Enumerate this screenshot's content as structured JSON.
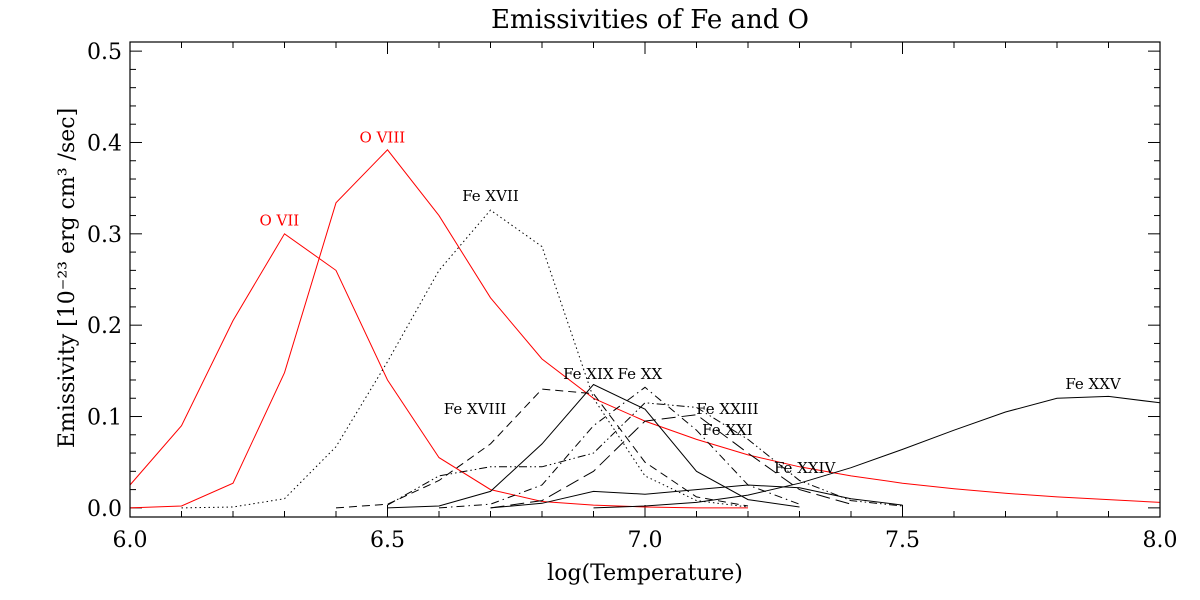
{
  "chart_data": {
    "type": "line",
    "title": "Emissivities of Fe and O",
    "xlabel": "log(Temperature)",
    "ylabel": "Emissivity [10⁻²³ erg cm³ /sec]",
    "xlim": [
      6.0,
      8.0
    ],
    "ylim": [
      -0.01,
      0.51
    ],
    "x_ticks": [
      "6.0",
      "6.5",
      "7.0",
      "7.5",
      "8.0"
    ],
    "y_ticks": [
      "0.0",
      "0.1",
      "0.2",
      "0.3",
      "0.4",
      "0.5"
    ],
    "grid": false,
    "legend": "none",
    "series": [
      {
        "name": "O  VII",
        "color": "#ff0000",
        "dash": "solid",
        "x": [
          6.0,
          6.1,
          6.2,
          6.3,
          6.4,
          6.5,
          6.6,
          6.7,
          6.8,
          6.9,
          7.0,
          7.1,
          7.2
        ],
        "y": [
          0.025,
          0.09,
          0.205,
          0.3,
          0.26,
          0.14,
          0.055,
          0.02,
          0.007,
          0.003,
          0.001,
          0.0,
          0.0
        ]
      },
      {
        "name": "O  VIII",
        "color": "#ff0000",
        "dash": "solid",
        "x": [
          6.0,
          6.1,
          6.2,
          6.3,
          6.4,
          6.5,
          6.6,
          6.7,
          6.8,
          6.9,
          7.0,
          7.1,
          7.2,
          7.3,
          7.4,
          7.5,
          7.6,
          7.7,
          7.8,
          7.9,
          8.0
        ],
        "y": [
          0.0,
          0.002,
          0.027,
          0.148,
          0.334,
          0.392,
          0.32,
          0.23,
          0.163,
          0.12,
          0.095,
          0.075,
          0.058,
          0.045,
          0.035,
          0.027,
          0.021,
          0.016,
          0.012,
          0.009,
          0.006
        ]
      },
      {
        "name": "Fe XVII",
        "color": "#000000",
        "dash": "dotted",
        "x": [
          6.1,
          6.2,
          6.3,
          6.4,
          6.5,
          6.6,
          6.7,
          6.8,
          6.9,
          7.0,
          7.1,
          7.2
        ],
        "y": [
          0.0,
          0.001,
          0.01,
          0.067,
          0.16,
          0.26,
          0.326,
          0.286,
          0.12,
          0.035,
          0.008,
          0.001
        ]
      },
      {
        "name": "Fe XVIII",
        "color": "#000000",
        "dash": "dashed",
        "x": [
          6.4,
          6.5,
          6.6,
          6.7,
          6.8,
          6.9,
          7.0,
          7.1,
          7.2
        ],
        "y": [
          0.0,
          0.004,
          0.03,
          0.07,
          0.13,
          0.125,
          0.05,
          0.012,
          0.002
        ]
      },
      {
        "name": "Fe XIX",
        "color": "#000000",
        "dash": "solid",
        "x": [
          6.5,
          6.6,
          6.7,
          6.8,
          6.9,
          7.0,
          7.1,
          7.2,
          7.3
        ],
        "y": [
          0.0,
          0.002,
          0.018,
          0.07,
          0.135,
          0.108,
          0.04,
          0.009,
          0.001
        ]
      },
      {
        "name": "Fe XX",
        "color": "#000000",
        "dash": "dashdot",
        "x": [
          6.6,
          6.7,
          6.8,
          6.9,
          7.0,
          7.1,
          7.2,
          7.3
        ],
        "y": [
          0.0,
          0.004,
          0.025,
          0.09,
          0.132,
          0.085,
          0.025,
          0.004
        ]
      },
      {
        "name": "Fe XXI",
        "color": "#000000",
        "dash": "longdash",
        "x": [
          6.7,
          6.8,
          6.9,
          7.0,
          7.1,
          7.2,
          7.3,
          7.4
        ],
        "y": [
          0.0,
          0.008,
          0.04,
          0.095,
          0.102,
          0.06,
          0.02,
          0.004
        ]
      },
      {
        "name": "Fe XXIII",
        "color": "#000000",
        "dash": "dashdotdot",
        "x": [
          6.5,
          6.6,
          6.7,
          6.8,
          6.9,
          7.0,
          7.1,
          7.2,
          7.3,
          7.4,
          7.5
        ],
        "y": [
          0.003,
          0.035,
          0.045,
          0.045,
          0.06,
          0.115,
          0.11,
          0.075,
          0.03,
          0.008,
          0.002
        ]
      },
      {
        "name": "Fe XXIV",
        "color": "#000000",
        "dash": "solid",
        "x": [
          6.7,
          6.8,
          6.9,
          7.0,
          7.1,
          7.2,
          7.3,
          7.4,
          7.5
        ],
        "y": [
          0.0,
          0.005,
          0.018,
          0.015,
          0.02,
          0.025,
          0.022,
          0.01,
          0.003
        ]
      },
      {
        "name": "Fe XXV",
        "color": "#000000",
        "dash": "solid",
        "x": [
          6.9,
          7.0,
          7.1,
          7.2,
          7.3,
          7.4,
          7.5,
          7.6,
          7.7,
          7.8,
          7.9,
          8.0
        ],
        "y": [
          0.0,
          0.002,
          0.006,
          0.014,
          0.027,
          0.044,
          0.064,
          0.085,
          0.105,
          0.12,
          0.122,
          0.115
        ]
      }
    ],
    "labels": [
      {
        "text": "O  VII",
        "color": "#ff0000",
        "x": 6.29,
        "y": 0.309
      },
      {
        "text": "O  VIII",
        "color": "#ff0000",
        "x": 6.49,
        "y": 0.4
      },
      {
        "text": "Fe XVII",
        "color": "#000000",
        "x": 6.7,
        "y": 0.336
      },
      {
        "text": "Fe XVIII",
        "color": "#000000",
        "x": 6.67,
        "y": 0.103
      },
      {
        "text": "Fe XIX",
        "color": "#000000",
        "x": 6.89,
        "y": 0.141
      },
      {
        "text": "Fe XX",
        "color": "#000000",
        "x": 6.99,
        "y": 0.141
      },
      {
        "text": "Fe XXIII",
        "color": "#000000",
        "x": 7.16,
        "y": 0.103
      },
      {
        "text": "Fe XXI",
        "color": "#000000",
        "x": 7.16,
        "y": 0.08
      },
      {
        "text": "Fe XXIV",
        "color": "#000000",
        "x": 7.31,
        "y": 0.038
      },
      {
        "text": "Fe XXV",
        "color": "#000000",
        "x": 7.87,
        "y": 0.13
      }
    ]
  }
}
